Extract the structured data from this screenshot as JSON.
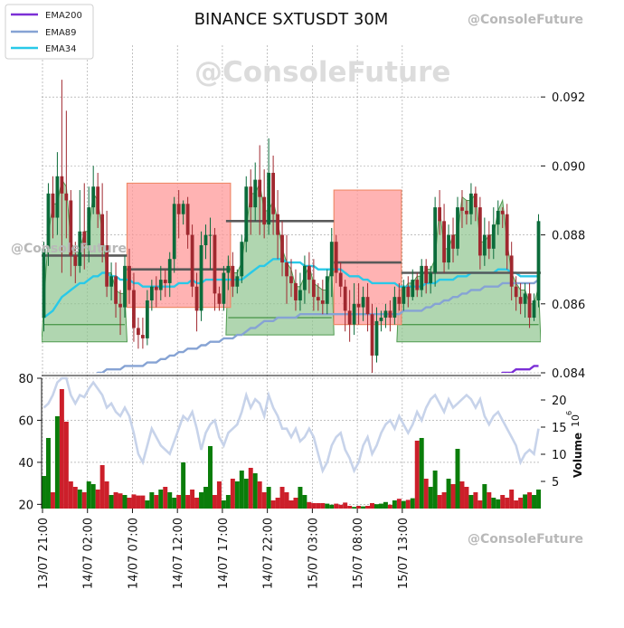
{
  "title": "BINANCE SXTUSDT 30M",
  "watermark": "@ConsoleFuture",
  "legend": [
    {
      "name": "EMA200",
      "color": "#7b2fd6"
    },
    {
      "name": "EMA89",
      "color": "#86a3d4"
    },
    {
      "name": "EMA34",
      "color": "#29c9e8"
    }
  ],
  "colors": {
    "up": "#0b6b3a",
    "down": "#a0282f",
    "vol_up": "#0a7d0a",
    "vol_down": "#cc1f2a",
    "support_fill": "#8fc48f",
    "resist_fill": "#ff9a9a",
    "rsi_line": "#c7d3ea"
  },
  "chart_data": {
    "type": "candlestick",
    "title": "BINANCE SXTUSDT 30M",
    "x_ticks": [
      "13/07 21:00",
      "14/07 02:00",
      "14/07 07:00",
      "14/07 12:00",
      "14/07 17:00",
      "14/07 22:00",
      "15/07 03:00",
      "15/07 08:00",
      "15/07 13:00"
    ],
    "price_axis": {
      "ticks": [
        "0.084",
        "0.086",
        "0.088",
        "0.090",
        "0.092"
      ],
      "range": [
        0.084,
        0.0935
      ]
    },
    "candles": [
      [
        0.0856,
        0.0876,
        0.0852,
        0.0878
      ],
      [
        0.0876,
        0.0892,
        0.0871,
        0.0895
      ],
      [
        0.0892,
        0.0885,
        0.0879,
        0.0897
      ],
      [
        0.0885,
        0.0897,
        0.088,
        0.0904
      ],
      [
        0.0897,
        0.0892,
        0.0869,
        0.0925
      ],
      [
        0.0892,
        0.089,
        0.0879,
        0.0916
      ],
      [
        0.089,
        0.0874,
        0.0868,
        0.0893
      ],
      [
        0.0874,
        0.0871,
        0.0866,
        0.0878
      ],
      [
        0.0871,
        0.0881,
        0.0869,
        0.0893
      ],
      [
        0.0881,
        0.0877,
        0.087,
        0.0895
      ],
      [
        0.0877,
        0.0888,
        0.0872,
        0.0894
      ],
      [
        0.0888,
        0.0894,
        0.0886,
        0.09
      ],
      [
        0.0894,
        0.0886,
        0.0882,
        0.0898
      ],
      [
        0.0886,
        0.0877,
        0.0872,
        0.0895
      ],
      [
        0.0877,
        0.0865,
        0.0862,
        0.0887
      ],
      [
        0.0865,
        0.0868,
        0.0861,
        0.0872
      ],
      [
        0.0868,
        0.086,
        0.0856,
        0.0872
      ],
      [
        0.086,
        0.0859,
        0.0851,
        0.0864
      ],
      [
        0.0859,
        0.0871,
        0.0856,
        0.0874
      ],
      [
        0.0871,
        0.0864,
        0.086,
        0.0876
      ],
      [
        0.0864,
        0.0853,
        0.0849,
        0.0869
      ],
      [
        0.0853,
        0.0851,
        0.0847,
        0.0856
      ],
      [
        0.0851,
        0.085,
        0.0847,
        0.0856
      ],
      [
        0.085,
        0.0861,
        0.0848,
        0.0864
      ],
      [
        0.0861,
        0.0865,
        0.0858,
        0.0867
      ],
      [
        0.0865,
        0.0864,
        0.0859,
        0.0868
      ],
      [
        0.0864,
        0.0867,
        0.0861,
        0.0871
      ],
      [
        0.0867,
        0.0866,
        0.0862,
        0.087
      ],
      [
        0.0866,
        0.0873,
        0.0862,
        0.0875
      ],
      [
        0.0873,
        0.0889,
        0.0869,
        0.0891
      ],
      [
        0.0889,
        0.0886,
        0.0879,
        0.0893
      ],
      [
        0.0886,
        0.0889,
        0.0883,
        0.089
      ],
      [
        0.0889,
        0.088,
        0.0876,
        0.0891
      ],
      [
        0.088,
        0.0865,
        0.0862,
        0.0883
      ],
      [
        0.0865,
        0.0858,
        0.0852,
        0.0869
      ],
      [
        0.0858,
        0.0877,
        0.0855,
        0.0881
      ],
      [
        0.0877,
        0.088,
        0.0873,
        0.0883
      ],
      [
        0.088,
        0.088,
        0.087,
        0.0885
      ],
      [
        0.088,
        0.0863,
        0.0858,
        0.0882
      ],
      [
        0.0863,
        0.086,
        0.0858,
        0.0865
      ],
      [
        0.086,
        0.0869,
        0.0858,
        0.0871
      ],
      [
        0.0869,
        0.0871,
        0.0864,
        0.0874
      ],
      [
        0.0871,
        0.0865,
        0.0862,
        0.0875
      ],
      [
        0.0865,
        0.0868,
        0.0863,
        0.087
      ],
      [
        0.0868,
        0.0878,
        0.0866,
        0.088
      ],
      [
        0.0878,
        0.0894,
        0.0875,
        0.0897
      ],
      [
        0.0894,
        0.0888,
        0.088,
        0.0899
      ],
      [
        0.0888,
        0.0896,
        0.0884,
        0.0901
      ],
      [
        0.0896,
        0.0891,
        0.088,
        0.0906
      ],
      [
        0.0891,
        0.0883,
        0.0879,
        0.0899
      ],
      [
        0.0883,
        0.0898,
        0.088,
        0.0908
      ],
      [
        0.0898,
        0.0886,
        0.088,
        0.0903
      ],
      [
        0.0886,
        0.088,
        0.0873,
        0.0893
      ],
      [
        0.088,
        0.0872,
        0.0868,
        0.0884
      ],
      [
        0.0872,
        0.0868,
        0.086,
        0.088
      ],
      [
        0.0868,
        0.0866,
        0.0862,
        0.0873
      ],
      [
        0.0866,
        0.0861,
        0.0858,
        0.087
      ],
      [
        0.0861,
        0.0864,
        0.0858,
        0.0869
      ],
      [
        0.0864,
        0.0871,
        0.086,
        0.0874
      ],
      [
        0.0871,
        0.0867,
        0.0863,
        0.0875
      ],
      [
        0.0867,
        0.0862,
        0.0858,
        0.0873
      ],
      [
        0.0862,
        0.0861,
        0.0858,
        0.0866
      ],
      [
        0.0861,
        0.086,
        0.0857,
        0.0867
      ],
      [
        0.086,
        0.0868,
        0.0857,
        0.087
      ],
      [
        0.0868,
        0.0878,
        0.0862,
        0.0882
      ],
      [
        0.0878,
        0.0869,
        0.0866,
        0.088
      ],
      [
        0.0869,
        0.0865,
        0.0862,
        0.0872
      ],
      [
        0.0865,
        0.0858,
        0.0852,
        0.0867
      ],
      [
        0.0858,
        0.0854,
        0.0849,
        0.0864
      ],
      [
        0.0854,
        0.086,
        0.0851,
        0.0866
      ],
      [
        0.086,
        0.0859,
        0.0854,
        0.0866
      ],
      [
        0.0859,
        0.0862,
        0.0855,
        0.0865
      ],
      [
        0.0862,
        0.0857,
        0.0852,
        0.0866
      ],
      [
        0.0857,
        0.0845,
        0.084,
        0.086
      ],
      [
        0.0845,
        0.0855,
        0.0843,
        0.0859
      ],
      [
        0.0855,
        0.0856,
        0.0852,
        0.0858
      ],
      [
        0.0856,
        0.0858,
        0.0853,
        0.086
      ],
      [
        0.0858,
        0.0856,
        0.0852,
        0.0861
      ],
      [
        0.0856,
        0.0862,
        0.0854,
        0.0865
      ],
      [
        0.0862,
        0.086,
        0.0858,
        0.0866
      ],
      [
        0.086,
        0.0865,
        0.0858,
        0.0867
      ],
      [
        0.0865,
        0.0862,
        0.0859,
        0.0868
      ],
      [
        0.0862,
        0.0867,
        0.0861,
        0.087
      ],
      [
        0.0867,
        0.0864,
        0.0862,
        0.0869
      ],
      [
        0.0864,
        0.0871,
        0.0862,
        0.0873
      ],
      [
        0.0871,
        0.0866,
        0.0863,
        0.0873
      ],
      [
        0.0866,
        0.0869,
        0.0863,
        0.0871
      ],
      [
        0.0869,
        0.0888,
        0.0865,
        0.0891
      ],
      [
        0.0888,
        0.0884,
        0.088,
        0.0893
      ],
      [
        0.0884,
        0.0872,
        0.0869,
        0.0889
      ],
      [
        0.0872,
        0.088,
        0.087,
        0.0883
      ],
      [
        0.088,
        0.0876,
        0.0872,
        0.0885
      ],
      [
        0.0876,
        0.0888,
        0.0874,
        0.0891
      ],
      [
        0.0888,
        0.0887,
        0.0882,
        0.0893
      ],
      [
        0.0887,
        0.0886,
        0.0883,
        0.089
      ],
      [
        0.0886,
        0.0892,
        0.0883,
        0.0895
      ],
      [
        0.0892,
        0.0888,
        0.0884,
        0.0894
      ],
      [
        0.0888,
        0.0874,
        0.087,
        0.0891
      ],
      [
        0.0874,
        0.088,
        0.0871,
        0.0885
      ],
      [
        0.088,
        0.0876,
        0.0873,
        0.0884
      ],
      [
        0.0876,
        0.0883,
        0.0873,
        0.0888
      ],
      [
        0.0883,
        0.0887,
        0.088,
        0.089
      ],
      [
        0.0887,
        0.0886,
        0.0882,
        0.0888
      ],
      [
        0.0886,
        0.0874,
        0.087,
        0.0889
      ],
      [
        0.0874,
        0.0865,
        0.0861,
        0.0878
      ],
      [
        0.0865,
        0.0862,
        0.0858,
        0.0868
      ],
      [
        0.0862,
        0.086,
        0.0857,
        0.0866
      ],
      [
        0.086,
        0.0863,
        0.0856,
        0.0866
      ],
      [
        0.0863,
        0.0856,
        0.0853,
        0.0866
      ],
      [
        0.0856,
        0.0861,
        0.0855,
        0.0863
      ],
      [
        0.0861,
        0.0884,
        0.0859,
        0.0886
      ]
    ],
    "ema_34": [
      0.0856,
      0.0857,
      0.0858,
      0.086,
      0.0862,
      0.0863,
      0.0864,
      0.0865,
      0.0866,
      0.0866,
      0.0867,
      0.0868,
      0.0868,
      0.0869,
      0.0869,
      0.0868,
      0.0868,
      0.0867,
      0.0867,
      0.0867,
      0.0866,
      0.0866,
      0.0865,
      0.0865,
      0.0865,
      0.0865,
      0.0865,
      0.0865,
      0.0865,
      0.0865,
      0.0866,
      0.0866,
      0.0866,
      0.0867,
      0.0866,
      0.0866,
      0.0867,
      0.0867,
      0.0867,
      0.0867,
      0.0867,
      0.0867,
      0.0867,
      0.0867,
      0.0867,
      0.0868,
      0.0869,
      0.087,
      0.0871,
      0.0871,
      0.0872,
      0.0873,
      0.0873,
      0.0873,
      0.0872,
      0.0872,
      0.0872,
      0.0872,
      0.0871,
      0.0871,
      0.0871,
      0.087,
      0.087,
      0.087,
      0.087,
      0.087,
      0.087,
      0.0869,
      0.0868,
      0.0868,
      0.0868,
      0.0867,
      0.0867,
      0.0866,
      0.0866,
      0.0866,
      0.0866,
      0.0866,
      0.0866,
      0.0865,
      0.0865,
      0.0865,
      0.0865,
      0.0865,
      0.0865,
      0.0866,
      0.0866,
      0.0866,
      0.0867,
      0.0867,
      0.0867,
      0.0867,
      0.0868,
      0.0868,
      0.0868,
      0.0869,
      0.0869,
      0.0869,
      0.0869,
      0.0869,
      0.0869,
      0.087,
      0.087,
      0.087,
      0.0869,
      0.0869,
      0.0868,
      0.0868,
      0.0868,
      0.0868,
      0.0868
    ],
    "ema_89": [
      0.0831,
      0.0832,
      0.0833,
      0.0834,
      0.0835,
      0.0836,
      0.0836,
      0.0837,
      0.0837,
      0.0838,
      0.0839,
      0.0839,
      0.084,
      0.084,
      0.0841,
      0.0841,
      0.0841,
      0.0841,
      0.0842,
      0.0842,
      0.0842,
      0.0842,
      0.0842,
      0.0843,
      0.0843,
      0.0843,
      0.0844,
      0.0844,
      0.0845,
      0.0845,
      0.0846,
      0.0846,
      0.0847,
      0.0847,
      0.0847,
      0.0848,
      0.0848,
      0.0849,
      0.0849,
      0.0849,
      0.085,
      0.085,
      0.085,
      0.0851,
      0.0851,
      0.0852,
      0.0853,
      0.0853,
      0.0854,
      0.0855,
      0.0855,
      0.0855,
      0.0856,
      0.0856,
      0.0856,
      0.0856,
      0.0856,
      0.0857,
      0.0857,
      0.0857,
      0.0857,
      0.0857,
      0.0857,
      0.0857,
      0.0857,
      0.0857,
      0.0857,
      0.0857,
      0.0857,
      0.0857,
      0.0857,
      0.0857,
      0.0857,
      0.0857,
      0.0857,
      0.0857,
      0.0857,
      0.0857,
      0.0857,
      0.0857,
      0.0858,
      0.0858,
      0.0858,
      0.0858,
      0.0858,
      0.0859,
      0.0859,
      0.086,
      0.086,
      0.0861,
      0.0861,
      0.0862,
      0.0862,
      0.0863,
      0.0863,
      0.0864,
      0.0864,
      0.0864,
      0.0865,
      0.0865,
      0.0865,
      0.0865,
      0.0866,
      0.0866,
      0.0866,
      0.0866,
      0.0866,
      0.0866,
      0.0866,
      0.0866,
      0.0867
    ],
    "ema_200": [
      0.082,
      0.0821,
      0.0821,
      0.0821,
      0.0822,
      0.0822,
      0.0822,
      0.0823,
      0.0823,
      0.0823,
      0.0824,
      0.0824,
      0.0824,
      0.0824,
      0.0825,
      0.0825,
      0.0825,
      0.0825,
      0.0826,
      0.0826,
      0.0826,
      0.0826,
      0.0826,
      0.0827,
      0.0827,
      0.0827,
      0.0827,
      0.0827,
      0.0828,
      0.0828,
      0.0828,
      0.0828,
      0.0829,
      0.0829,
      0.0829,
      0.0829,
      0.0829,
      0.083,
      0.083,
      0.083,
      0.083,
      0.083,
      0.0831,
      0.0831,
      0.0831,
      0.0831,
      0.0831,
      0.0832,
      0.0832,
      0.0832,
      0.0832,
      0.0832,
      0.0833,
      0.0833,
      0.0833,
      0.0833,
      0.0833,
      0.0833,
      0.0834,
      0.0834,
      0.0834,
      0.0834,
      0.0834,
      0.0834,
      0.0834,
      0.0834,
      0.0834,
      0.0835,
      0.0835,
      0.0835,
      0.0835,
      0.0835,
      0.0835,
      0.0835,
      0.0835,
      0.0835,
      0.0835,
      0.0835,
      0.0835,
      0.0835,
      0.0835,
      0.0835,
      0.0835,
      0.0836,
      0.0836,
      0.0836,
      0.0836,
      0.0836,
      0.0836,
      0.0836,
      0.0837,
      0.0837,
      0.0837,
      0.0837,
      0.0837,
      0.0838,
      0.0838,
      0.0838,
      0.0838,
      0.0839,
      0.0839,
      0.0839,
      0.084,
      0.084,
      0.084,
      0.0841,
      0.0841,
      0.0841,
      0.0841,
      0.0842,
      0.0842
    ],
    "resistance_zones": [
      {
        "from": 19,
        "to": 41,
        "top": 0.0895,
        "bottom": 0.0859
      },
      {
        "from": 65,
        "to": 79,
        "top": 0.0893,
        "bottom": 0.0854
      }
    ],
    "support_zones": [
      {
        "from": 0,
        "to": 18,
        "top": 0.0873,
        "bottom": 0.0849
      },
      {
        "from": 41,
        "to": 64,
        "top": 0.0874,
        "bottom": 0.0851
      },
      {
        "from": 79,
        "to": 110,
        "top": 0.087,
        "bottom": 0.0849
      }
    ],
    "pivot_segments": [
      {
        "from": 0,
        "to": 18,
        "value": 0.0874
      },
      {
        "from": 19,
        "to": 41,
        "value": 0.087
      },
      {
        "from": 41,
        "to": 64,
        "value": 0.0884
      },
      {
        "from": 65,
        "to": 79,
        "value": 0.0872
      },
      {
        "from": 80,
        "to": 110,
        "value": 0.0869
      }
    ],
    "oscillator_axis": {
      "ticks": [
        "20",
        "40",
        "60",
        "80"
      ],
      "range": [
        18,
        80
      ]
    },
    "oscillator": [
      66,
      68,
      72,
      78,
      80,
      80,
      72,
      68,
      72,
      71,
      75,
      78,
      75,
      72,
      66,
      68,
      64,
      62,
      66,
      62,
      54,
      44,
      40,
      48,
      56,
      52,
      48,
      46,
      44,
      50,
      56,
      62,
      60,
      64,
      56,
      46,
      54,
      58,
      60,
      52,
      48,
      54,
      56,
      58,
      64,
      72,
      66,
      70,
      68,
      62,
      72,
      66,
      62,
      56,
      56,
      52,
      56,
      50,
      52,
      56,
      52,
      44,
      36,
      40,
      48,
      52,
      54,
      46,
      42,
      36,
      40,
      48,
      52,
      44,
      48,
      54,
      58,
      60,
      56,
      62,
      58,
      54,
      58,
      64,
      60,
      66,
      70,
      72,
      68,
      64,
      70,
      66,
      68,
      70,
      72,
      70,
      66,
      70,
      62,
      58,
      62,
      64,
      60,
      56,
      52,
      48,
      40,
      44,
      46,
      44,
      56
    ],
    "volume_axis": {
      "label": "Volume",
      "multiplier": "10^6",
      "ticks": [
        "5",
        "10",
        "15",
        "20"
      ],
      "range": [
        0,
        24
      ]
    },
    "volume": [
      6,
      13,
      3,
      17,
      22,
      16,
      5,
      4,
      3.5,
      3,
      5,
      4.5,
      3.5,
      8,
      5,
      2.5,
      3,
      2.8,
      2.5,
      2,
      2.6,
      2.4,
      2.4,
      1.5,
      3,
      2.5,
      3.5,
      4,
      3,
      2,
      2.5,
      8.5,
      2.5,
      3.5,
      2,
      3,
      4,
      11.5,
      2.5,
      5,
      1.5,
      2.5,
      5.5,
      5,
      7,
      5.5,
      7.5,
      6.5,
      5,
      3,
      4,
      1.5,
      2,
      4,
      3,
      1.5,
      2,
      4,
      2.5,
      1.2,
      1,
      1,
      1,
      0.9,
      0.7,
      0.9,
      0.7,
      1.1,
      0.5,
      0.3,
      0.5,
      0.4,
      0.5,
      1,
      0.8,
      0.9,
      1.2,
      0.7,
      1.5,
      1.8,
      1.4,
      1.6,
      1.9,
      12.5,
      13,
      5.5,
      4,
      7,
      2.5,
      3,
      5.5,
      4.5,
      11,
      5,
      4,
      2.5,
      3,
      1.5,
      4.5,
      3,
      2,
      1.7,
      2.5,
      2,
      3.5,
      1.5,
      2,
      2.6,
      3,
      2.5,
      3.5
    ]
  }
}
